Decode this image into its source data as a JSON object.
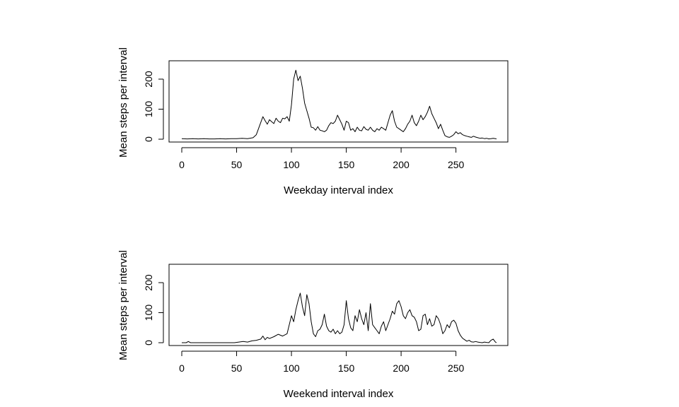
{
  "chart_data": [
    {
      "type": "line",
      "xlabel": "Weekday interval index",
      "ylabel": "Mean steps per interval",
      "xlim": [
        0,
        287
      ],
      "ylim": [
        0,
        230
      ],
      "xticks": [
        0,
        50,
        100,
        150,
        200,
        250
      ],
      "yticks": [
        0,
        100,
        200
      ],
      "grid": false,
      "x": [
        0,
        5,
        10,
        15,
        20,
        25,
        30,
        35,
        40,
        45,
        50,
        55,
        60,
        65,
        68,
        70,
        72,
        74,
        76,
        78,
        80,
        82,
        84,
        86,
        88,
        90,
        92,
        94,
        96,
        98,
        100,
        102,
        104,
        106,
        108,
        110,
        112,
        114,
        116,
        118,
        120,
        122,
        124,
        126,
        128,
        130,
        132,
        134,
        136,
        138,
        140,
        142,
        144,
        146,
        148,
        150,
        152,
        154,
        156,
        158,
        160,
        162,
        164,
        166,
        168,
        170,
        172,
        174,
        176,
        178,
        180,
        182,
        184,
        186,
        188,
        190,
        192,
        194,
        196,
        198,
        200,
        202,
        204,
        206,
        208,
        210,
        212,
        214,
        216,
        218,
        220,
        222,
        224,
        226,
        228,
        230,
        232,
        234,
        236,
        238,
        240,
        242,
        244,
        246,
        248,
        250,
        252,
        254,
        256,
        258,
        260,
        262,
        264,
        266,
        268,
        270,
        272,
        274,
        276,
        278,
        280,
        282,
        284,
        286,
        287
      ],
      "y": [
        2,
        1,
        2,
        1,
        2,
        1,
        1,
        2,
        1,
        2,
        2,
        3,
        2,
        5,
        15,
        35,
        55,
        75,
        62,
        50,
        65,
        58,
        52,
        70,
        60,
        55,
        70,
        68,
        75,
        60,
        115,
        200,
        230,
        195,
        210,
        170,
        120,
        95,
        70,
        40,
        38,
        30,
        42,
        30,
        28,
        25,
        30,
        45,
        55,
        52,
        60,
        80,
        65,
        50,
        30,
        60,
        55,
        30,
        35,
        25,
        40,
        30,
        28,
        42,
        33,
        30,
        40,
        30,
        25,
        35,
        30,
        40,
        35,
        30,
        55,
        80,
        95,
        60,
        40,
        35,
        30,
        25,
        35,
        50,
        60,
        80,
        55,
        45,
        60,
        80,
        65,
        75,
        90,
        110,
        85,
        70,
        55,
        35,
        50,
        30,
        12,
        8,
        6,
        10,
        15,
        25,
        18,
        22,
        15,
        12,
        10,
        8,
        6,
        10,
        7,
        5,
        3,
        4,
        2,
        3,
        1,
        2,
        3,
        2,
        1
      ]
    },
    {
      "type": "line",
      "xlabel": "Weekend interval index",
      "ylabel": "Mean steps per interval",
      "xlim": [
        0,
        287
      ],
      "ylim": [
        0,
        230
      ],
      "xticks": [
        0,
        50,
        100,
        150,
        200,
        250
      ],
      "yticks": [
        0,
        100,
        200
      ],
      "grid": false,
      "x": [
        0,
        4,
        6,
        8,
        12,
        16,
        20,
        24,
        28,
        32,
        36,
        40,
        44,
        48,
        52,
        56,
        60,
        64,
        68,
        72,
        74,
        76,
        78,
        80,
        84,
        88,
        92,
        96,
        98,
        100,
        102,
        104,
        106,
        108,
        110,
        112,
        114,
        116,
        118,
        120,
        122,
        124,
        126,
        128,
        130,
        132,
        134,
        136,
        138,
        140,
        142,
        144,
        146,
        148,
        150,
        152,
        154,
        156,
        158,
        160,
        162,
        164,
        166,
        168,
        170,
        172,
        174,
        176,
        178,
        180,
        182,
        184,
        186,
        188,
        190,
        192,
        194,
        196,
        198,
        200,
        202,
        204,
        206,
        208,
        210,
        212,
        214,
        216,
        218,
        220,
        222,
        224,
        226,
        228,
        230,
        232,
        234,
        236,
        238,
        240,
        242,
        244,
        246,
        248,
        250,
        252,
        254,
        256,
        258,
        260,
        262,
        264,
        266,
        268,
        270,
        272,
        274,
        276,
        278,
        280,
        282,
        284,
        286,
        287
      ],
      "y": [
        0,
        0,
        4,
        0,
        0,
        0,
        0,
        0,
        0,
        0,
        0,
        0,
        0,
        0,
        2,
        4,
        2,
        6,
        8,
        12,
        22,
        10,
        18,
        14,
        20,
        28,
        22,
        30,
        60,
        90,
        70,
        110,
        140,
        165,
        120,
        90,
        160,
        130,
        70,
        30,
        20,
        40,
        45,
        60,
        95,
        55,
        40,
        35,
        45,
        30,
        40,
        30,
        35,
        60,
        140,
        80,
        50,
        40,
        90,
        70,
        110,
        80,
        60,
        100,
        40,
        130,
        60,
        50,
        40,
        30,
        55,
        70,
        40,
        60,
        80,
        105,
        95,
        130,
        140,
        120,
        90,
        80,
        100,
        110,
        90,
        85,
        70,
        40,
        45,
        90,
        95,
        60,
        80,
        55,
        60,
        90,
        80,
        60,
        30,
        40,
        60,
        50,
        70,
        75,
        65,
        40,
        25,
        15,
        10,
        5,
        8,
        3,
        2,
        4,
        2,
        1,
        0,
        2,
        1,
        0,
        8,
        12,
        2,
        0
      ]
    }
  ]
}
